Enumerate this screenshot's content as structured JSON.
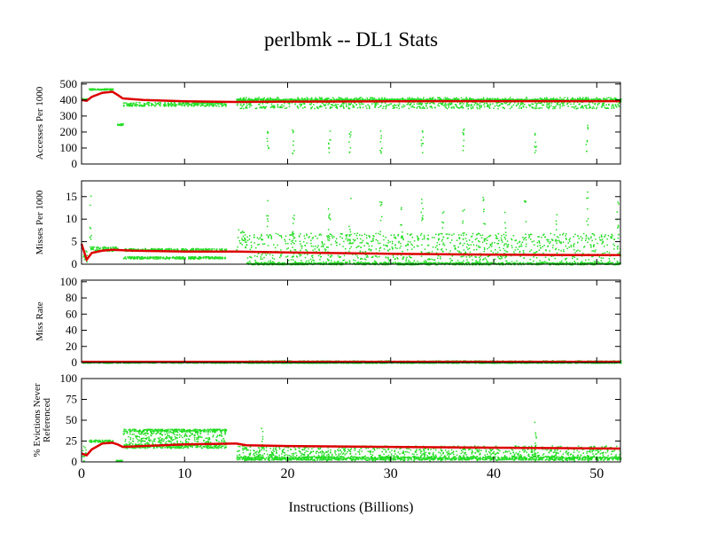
{
  "title": "perlbmk -- DL1  Stats",
  "xlabel": "Instructions (Billions)",
  "colors": {
    "samples": "#22dd22",
    "average": "#dd0000",
    "axes": "#000000"
  },
  "chart_data": [
    {
      "type": "scatter",
      "ylabel": "Accesses Per 1000",
      "xlim": [
        0,
        52.3
      ],
      "ylim": [
        0,
        510
      ],
      "yticks": [
        0,
        100,
        200,
        300,
        400,
        500
      ],
      "xticks": [
        0,
        10,
        20,
        30,
        40,
        50
      ],
      "average_line": [
        [
          0,
          400
        ],
        [
          0.5,
          395
        ],
        [
          1,
          420
        ],
        [
          2,
          445
        ],
        [
          3,
          452
        ],
        [
          3.5,
          432
        ],
        [
          4,
          410
        ],
        [
          6,
          400
        ],
        [
          10,
          392
        ],
        [
          15,
          388
        ],
        [
          20,
          390
        ],
        [
          30,
          392
        ],
        [
          40,
          393
        ],
        [
          52.3,
          393
        ]
      ],
      "sample_bands": [
        [
          0,
          0.5,
          400,
          415
        ],
        [
          0.7,
          3,
          465,
          475
        ],
        [
          3.3,
          4,
          245,
          255
        ],
        [
          4,
          14,
          365,
          390
        ],
        [
          15,
          52.3,
          398,
          410
        ],
        [
          15,
          52.3,
          350,
          420
        ]
      ],
      "sample_spikes": [
        [
          18,
          220
        ],
        [
          20.5,
          225
        ],
        [
          24,
          230
        ],
        [
          26,
          220
        ],
        [
          29,
          225
        ],
        [
          33,
          230
        ],
        [
          37,
          225
        ],
        [
          44,
          230
        ],
        [
          49,
          250
        ]
      ]
    },
    {
      "type": "scatter",
      "ylabel": "Misses Per 1000",
      "xlim": [
        0,
        52.3
      ],
      "ylim": [
        0,
        18.5
      ],
      "yticks": [
        0,
        5,
        10,
        15
      ],
      "xticks": [
        0,
        10,
        20,
        30,
        40,
        50
      ],
      "average_line": [
        [
          0,
          4.5
        ],
        [
          0.5,
          1
        ],
        [
          1,
          2.5
        ],
        [
          2,
          3
        ],
        [
          3,
          3.2
        ],
        [
          5,
          3
        ],
        [
          10,
          2.8
        ],
        [
          15,
          2.8
        ],
        [
          20,
          2.6
        ],
        [
          30,
          2.3
        ],
        [
          40,
          2.1
        ],
        [
          52.3,
          2
        ]
      ],
      "sample_bands": [
        [
          0,
          0.5,
          0.5,
          4
        ],
        [
          0.7,
          3.5,
          3,
          4
        ],
        [
          4,
          14,
          1.3,
          1.8
        ],
        [
          4,
          14,
          3,
          3.6
        ],
        [
          15,
          16,
          3,
          8
        ],
        [
          16,
          52.3,
          0,
          0.5
        ],
        [
          16,
          52.3,
          0.5,
          7
        ]
      ],
      "sample_spikes": [
        [
          0.8,
          17
        ],
        [
          18,
          15
        ],
        [
          20.5,
          16
        ],
        [
          24,
          13
        ],
        [
          26,
          15
        ],
        [
          29,
          14
        ],
        [
          31,
          13
        ],
        [
          33,
          15
        ],
        [
          35,
          14
        ],
        [
          37,
          13
        ],
        [
          39,
          15
        ],
        [
          41,
          13
        ],
        [
          43,
          15
        ],
        [
          46,
          14
        ],
        [
          49,
          17
        ],
        [
          52,
          15
        ]
      ]
    },
    {
      "type": "scatter",
      "ylabel": "Miss Rate",
      "xlim": [
        0,
        52.3
      ],
      "ylim": [
        0,
        102
      ],
      "yticks": [
        0,
        20,
        40,
        60,
        80,
        100
      ],
      "xticks": [
        0,
        10,
        20,
        30,
        40,
        50
      ],
      "average_line": [
        [
          0,
          1
        ],
        [
          52.3,
          1
        ]
      ],
      "sample_bands": [
        [
          0,
          52.3,
          0,
          2
        ],
        [
          16,
          52.3,
          0,
          3
        ]
      ],
      "sample_spikes": []
    },
    {
      "type": "scatter",
      "ylabel": "% Evictions Never Referenced",
      "xlim": [
        0,
        52.3
      ],
      "ylim": [
        0,
        100
      ],
      "yticks": [
        0,
        25,
        50,
        75,
        100
      ],
      "xticks": [
        0,
        10,
        20,
        30,
        40,
        50
      ],
      "average_line": [
        [
          0,
          10
        ],
        [
          0.5,
          8
        ],
        [
          1,
          15
        ],
        [
          2,
          22
        ],
        [
          3,
          23
        ],
        [
          3.5,
          21
        ],
        [
          4,
          18
        ],
        [
          6,
          19
        ],
        [
          10,
          21
        ],
        [
          15,
          22
        ],
        [
          16,
          20
        ],
        [
          20,
          19
        ],
        [
          30,
          18
        ],
        [
          40,
          17
        ],
        [
          52.3,
          16
        ]
      ],
      "sample_bands": [
        [
          0,
          0.5,
          2,
          20
        ],
        [
          0.7,
          3,
          24,
          27
        ],
        [
          3.3,
          4,
          1,
          3
        ],
        [
          4,
          14,
          37,
          40
        ],
        [
          4,
          14,
          17,
          22
        ],
        [
          4,
          14,
          22,
          37
        ],
        [
          15,
          52.3,
          2,
          20
        ],
        [
          15,
          52.3,
          3,
          7
        ]
      ],
      "sample_spikes": [
        [
          44,
          51
        ],
        [
          17.5,
          42
        ]
      ]
    }
  ]
}
